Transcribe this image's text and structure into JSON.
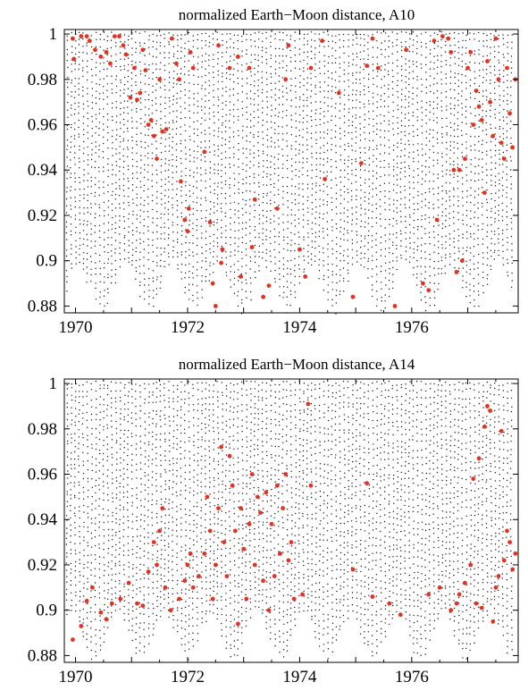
{
  "chart_data": [
    {
      "type": "scatter",
      "title": "normalized Earth−Moon distance, A10",
      "xlabel": "",
      "ylabel": "",
      "xlim": [
        1969.8,
        1977.9
      ],
      "ylim": [
        0.877,
        1.002
      ],
      "x_ticks": [
        1970,
        1972,
        1974,
        1976
      ],
      "x_tick_labels": [
        "1970",
        "1972",
        "1974",
        "1976"
      ],
      "y_ticks": [
        0.88,
        0.9,
        0.92,
        0.94,
        0.96,
        0.98,
        1
      ],
      "y_tick_labels": [
        "0.88",
        "0.9",
        "0.92",
        "0.94",
        "0.96",
        "0.98",
        "1"
      ],
      "grid": false,
      "series": [
        {
          "color": "#111111",
          "marker": "small-dot",
          "description_values": "dense background cloud of the full time series, 0.877 to 1.0"
        },
        {
          "color": "#e8301e",
          "marker": "dot",
          "values": [
            [
              1969.95,
              0.998
            ],
            [
              1969.97,
              0.989
            ],
            [
              1970.1,
              0.999
            ],
            [
              1970.2,
              0.999
            ],
            [
              1970.25,
              0.997
            ],
            [
              1970.35,
              0.993
            ],
            [
              1970.45,
              0.99
            ],
            [
              1970.55,
              0.992
            ],
            [
              1970.62,
              0.987
            ],
            [
              1970.7,
              0.999
            ],
            [
              1970.78,
              0.999
            ],
            [
              1970.85,
              0.995
            ],
            [
              1970.9,
              0.991
            ],
            [
              1970.98,
              0.972
            ],
            [
              1971.05,
              0.985
            ],
            [
              1971.1,
              0.971
            ],
            [
              1971.15,
              0.974
            ],
            [
              1971.2,
              0.993
            ],
            [
              1971.25,
              0.984
            ],
            [
              1971.3,
              0.96
            ],
            [
              1971.35,
              0.962
            ],
            [
              1971.4,
              0.955
            ],
            [
              1971.45,
              0.945
            ],
            [
              1971.5,
              0.98
            ],
            [
              1971.55,
              0.957
            ],
            [
              1971.62,
              0.958
            ],
            [
              1971.72,
              0.998
            ],
            [
              1971.8,
              0.987
            ],
            [
              1971.85,
              0.98
            ],
            [
              1971.88,
              0.935
            ],
            [
              1971.95,
              0.918
            ],
            [
              1972.0,
              0.913
            ],
            [
              1972.02,
              0.923
            ],
            [
              1972.05,
              0.992
            ],
            [
              1972.1,
              0.985
            ],
            [
              1972.3,
              0.948
            ],
            [
              1972.4,
              0.917
            ],
            [
              1972.45,
              0.89
            ],
            [
              1972.5,
              0.88
            ],
            [
              1972.55,
              0.995
            ],
            [
              1972.6,
              0.899
            ],
            [
              1972.62,
              0.905
            ],
            [
              1972.75,
              0.985
            ],
            [
              1972.9,
              0.99
            ],
            [
              1972.95,
              0.893
            ],
            [
              1973.1,
              0.985
            ],
            [
              1973.15,
              0.906
            ],
            [
              1973.2,
              0.927
            ],
            [
              1973.35,
              0.884
            ],
            [
              1973.45,
              0.889
            ],
            [
              1973.6,
              0.923
            ],
            [
              1973.75,
              0.98
            ],
            [
              1973.8,
              0.995
            ],
            [
              1974.0,
              0.905
            ],
            [
              1974.1,
              0.893
            ],
            [
              1974.2,
              0.985
            ],
            [
              1974.4,
              0.997
            ],
            [
              1974.45,
              0.936
            ],
            [
              1974.7,
              0.974
            ],
            [
              1974.95,
              0.884
            ],
            [
              1975.1,
              0.943
            ],
            [
              1975.2,
              0.986
            ],
            [
              1975.3,
              0.998
            ],
            [
              1975.4,
              0.985
            ],
            [
              1975.7,
              0.88
            ],
            [
              1975.9,
              0.993
            ],
            [
              1976.2,
              0.89
            ],
            [
              1976.3,
              0.887
            ],
            [
              1976.4,
              0.997
            ],
            [
              1976.45,
              0.918
            ],
            [
              1976.55,
              0.999
            ],
            [
              1976.65,
              0.998
            ],
            [
              1976.7,
              0.992
            ],
            [
              1976.75,
              0.94
            ],
            [
              1976.8,
              0.895
            ],
            [
              1976.85,
              0.94
            ],
            [
              1976.9,
              0.9
            ],
            [
              1976.95,
              0.945
            ],
            [
              1977.0,
              0.985
            ],
            [
              1977.05,
              0.992
            ],
            [
              1977.1,
              0.96
            ],
            [
              1977.15,
              0.975
            ],
            [
              1977.2,
              0.968
            ],
            [
              1977.25,
              0.962
            ],
            [
              1977.3,
              0.93
            ],
            [
              1977.35,
              0.988
            ],
            [
              1977.4,
              0.97
            ],
            [
              1977.45,
              0.955
            ],
            [
              1977.5,
              0.998
            ],
            [
              1977.55,
              0.98
            ],
            [
              1977.6,
              0.952
            ],
            [
              1977.65,
              0.945
            ],
            [
              1977.7,
              0.985
            ],
            [
              1977.75,
              0.965
            ],
            [
              1977.8,
              0.95
            ],
            [
              1977.85,
              0.98
            ]
          ]
        }
      ]
    },
    {
      "type": "scatter",
      "title": "normalized Earth−Moon distance, A14",
      "xlabel": "",
      "ylabel": "",
      "xlim": [
        1969.8,
        1977.9
      ],
      "ylim": [
        0.877,
        1.002
      ],
      "x_ticks": [
        1970,
        1972,
        1974,
        1976
      ],
      "x_tick_labels": [
        "1970",
        "1972",
        "1974",
        "1976"
      ],
      "y_ticks": [
        0.88,
        0.9,
        0.92,
        0.94,
        0.96,
        0.98,
        1
      ],
      "y_tick_labels": [
        "0.88",
        "0.9",
        "0.92",
        "0.94",
        "0.96",
        "0.98",
        "1"
      ],
      "grid": false,
      "series": [
        {
          "color": "#111111",
          "marker": "small-dot",
          "description_values": "dense background cloud of the full time series, 0.877 to 1.0"
        },
        {
          "color": "#e8301e",
          "marker": "dot",
          "values": [
            [
              1969.95,
              0.887
            ],
            [
              1970.1,
              0.893
            ],
            [
              1970.2,
              0.904
            ],
            [
              1970.3,
              0.91
            ],
            [
              1970.45,
              0.899
            ],
            [
              1970.55,
              0.896
            ],
            [
              1970.65,
              0.903
            ],
            [
              1970.8,
              0.905
            ],
            [
              1970.95,
              0.912
            ],
            [
              1971.1,
              0.903
            ],
            [
              1971.2,
              0.902
            ],
            [
              1971.3,
              0.917
            ],
            [
              1971.4,
              0.93
            ],
            [
              1971.45,
              0.92
            ],
            [
              1971.5,
              0.935
            ],
            [
              1971.55,
              0.945
            ],
            [
              1971.6,
              0.91
            ],
            [
              1971.7,
              0.9
            ],
            [
              1971.85,
              0.905
            ],
            [
              1971.95,
              0.913
            ],
            [
              1972.0,
              0.92
            ],
            [
              1972.05,
              0.925
            ],
            [
              1972.1,
              0.91
            ],
            [
              1972.2,
              0.915
            ],
            [
              1972.3,
              0.925
            ],
            [
              1972.35,
              0.95
            ],
            [
              1972.4,
              0.935
            ],
            [
              1972.45,
              0.905
            ],
            [
              1972.5,
              0.92
            ],
            [
              1972.55,
              0.945
            ],
            [
              1972.6,
              0.972
            ],
            [
              1972.65,
              0.93
            ],
            [
              1972.7,
              0.915
            ],
            [
              1972.75,
              0.968
            ],
            [
              1972.8,
              0.955
            ],
            [
              1972.85,
              0.935
            ],
            [
              1972.9,
              0.894
            ],
            [
              1972.95,
              0.945
            ],
            [
              1973.0,
              0.927
            ],
            [
              1973.05,
              0.905
            ],
            [
              1973.1,
              0.938
            ],
            [
              1973.15,
              0.96
            ],
            [
              1973.2,
              0.92
            ],
            [
              1973.25,
              0.95
            ],
            [
              1973.3,
              0.943
            ],
            [
              1973.35,
              0.913
            ],
            [
              1973.4,
              0.952
            ],
            [
              1973.45,
              0.9
            ],
            [
              1973.5,
              0.938
            ],
            [
              1973.55,
              0.915
            ],
            [
              1973.6,
              0.955
            ],
            [
              1973.65,
              0.925
            ],
            [
              1973.7,
              0.945
            ],
            [
              1973.75,
              0.96
            ],
            [
              1973.8,
              0.922
            ],
            [
              1973.85,
              0.93
            ],
            [
              1973.9,
              0.905
            ],
            [
              1974.05,
              0.907
            ],
            [
              1974.15,
              0.991
            ],
            [
              1974.2,
              0.955
            ],
            [
              1974.95,
              0.918
            ],
            [
              1975.2,
              0.956
            ],
            [
              1975.3,
              0.906
            ],
            [
              1975.6,
              0.903
            ],
            [
              1975.8,
              0.898
            ],
            [
              1976.3,
              0.907
            ],
            [
              1976.5,
              0.91
            ],
            [
              1976.7,
              0.9
            ],
            [
              1976.8,
              0.903
            ],
            [
              1976.85,
              0.907
            ],
            [
              1976.95,
              0.912
            ],
            [
              1977.05,
              0.92
            ],
            [
              1977.1,
              0.958
            ],
            [
              1977.15,
              0.903
            ],
            [
              1977.2,
              0.967
            ],
            [
              1977.25,
              0.901
            ],
            [
              1977.3,
              0.981
            ],
            [
              1977.35,
              0.99
            ],
            [
              1977.4,
              0.988
            ],
            [
              1977.45,
              0.895
            ],
            [
              1977.5,
              0.91
            ],
            [
              1977.55,
              0.915
            ],
            [
              1977.6,
              0.979
            ],
            [
              1977.65,
              0.922
            ],
            [
              1977.7,
              0.935
            ],
            [
              1977.75,
              0.93
            ],
            [
              1977.8,
              0.918
            ],
            [
              1977.85,
              0.925
            ]
          ]
        }
      ]
    }
  ]
}
